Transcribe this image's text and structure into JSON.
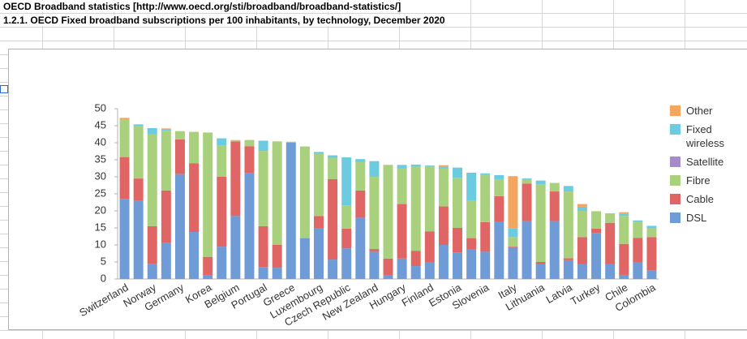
{
  "header": {
    "title": "OECD Broadband statistics [http://www.oecd.org/sti/broadband/broadband-statistics/]",
    "subtitle": "1.2.1. OECD Fixed broadband subscriptions per 100 inhabitants, by technology, December 2020"
  },
  "chart_data": {
    "type": "stacked_bar",
    "categories": [
      "Switzerland",
      null,
      "Norway",
      null,
      "Germany",
      null,
      "Korea",
      null,
      "Belgium",
      null,
      "Portugal",
      null,
      "Greece",
      null,
      "Luxembourg",
      null,
      "Czech Republic",
      null,
      "New Zealand",
      null,
      "Hungary",
      null,
      "Finland",
      null,
      "Estonia",
      null,
      "Slovenia",
      null,
      "Italy",
      null,
      "Lithuania",
      null,
      "Latvia",
      null,
      "Turkey",
      null,
      "Chile",
      null,
      "Colombia"
    ],
    "series": [
      {
        "name": "DSL",
        "color": "#6f9bd6",
        "values": [
          23.5,
          23,
          4.5,
          10.7,
          30.8,
          13.8,
          1,
          9.5,
          18.5,
          31,
          3.5,
          3.3,
          40,
          12,
          15,
          5.7,
          9,
          18,
          8,
          1,
          6,
          3.8,
          5,
          10,
          7.8,
          8.6,
          8,
          16.7,
          9.3,
          17,
          4.3,
          17,
          5.5,
          4.3,
          13.5,
          4.3,
          1.2,
          5,
          2.6
        ]
      },
      {
        "name": "Cable",
        "color": "#e06666",
        "values": [
          12.3,
          6.5,
          11,
          15.3,
          10.2,
          20.2,
          5.5,
          20.5,
          21.9,
          8,
          12,
          6.7,
          0,
          0,
          3.5,
          23.6,
          5.8,
          8,
          0.8,
          5,
          16,
          4.5,
          9,
          11.3,
          7.2,
          3.4,
          8.7,
          7.6,
          0.2,
          11,
          0.7,
          8.7,
          0.6,
          8,
          1.3,
          12.2,
          9.1,
          7.1,
          9.7
        ]
      },
      {
        "name": "Fibre",
        "color": "#a9d07c",
        "values": [
          10.9,
          15.4,
          26.9,
          17.5,
          2.4,
          9.2,
          36.5,
          9.2,
          0.4,
          1.8,
          22.1,
          30.4,
          0.3,
          26.9,
          18.3,
          6.3,
          6.8,
          8.3,
          21.2,
          27.5,
          10.5,
          24.8,
          19,
          11.1,
          14.7,
          11.1,
          14,
          5,
          2.8,
          1.1,
          22.8,
          2.5,
          19.6,
          7.7,
          5.1,
          2.8,
          8.2,
          4.8,
          2.5
        ]
      },
      {
        "name": "Satellite",
        "color": "#a98ac8",
        "values": [
          0,
          0,
          0,
          0,
          0,
          0,
          0,
          0,
          0,
          0,
          0,
          0,
          0,
          0,
          0,
          0,
          0,
          0,
          0,
          0,
          0,
          0,
          0,
          0,
          0,
          0,
          0,
          0,
          0,
          0,
          0,
          0,
          0,
          0,
          0,
          0,
          0,
          0,
          0
        ]
      },
      {
        "name": "Fixed wireless",
        "color": "#6ccbe0",
        "values": [
          0,
          0.5,
          1.9,
          0.3,
          0,
          0,
          0,
          2.1,
          0,
          0,
          3,
          0,
          0,
          0,
          0.5,
          0.7,
          14.1,
          0.9,
          4.6,
          0,
          1,
          0.5,
          0.3,
          0.6,
          3,
          8.1,
          0.3,
          1.2,
          2.5,
          0.4,
          1.1,
          0,
          1.6,
          1.2,
          0,
          0,
          0.6,
          0.3,
          0.8
        ]
      },
      {
        "name": "Other",
        "color": "#f4a65e",
        "values": [
          0.6,
          0,
          0,
          0.4,
          0,
          0,
          0,
          0,
          0,
          0,
          0,
          0,
          0,
          0,
          0,
          0,
          0,
          0,
          0,
          0,
          0,
          0,
          0,
          0.4,
          0,
          0,
          0,
          0,
          15.4,
          0,
          0,
          0,
          0,
          0.8,
          0,
          0,
          0.5,
          0,
          0
        ]
      }
    ],
    "ylim": [
      0,
      50
    ],
    "yticks": [
      0,
      5,
      10,
      15,
      20,
      25,
      30,
      35,
      40,
      45,
      50
    ],
    "grid": false,
    "legend": "right"
  }
}
